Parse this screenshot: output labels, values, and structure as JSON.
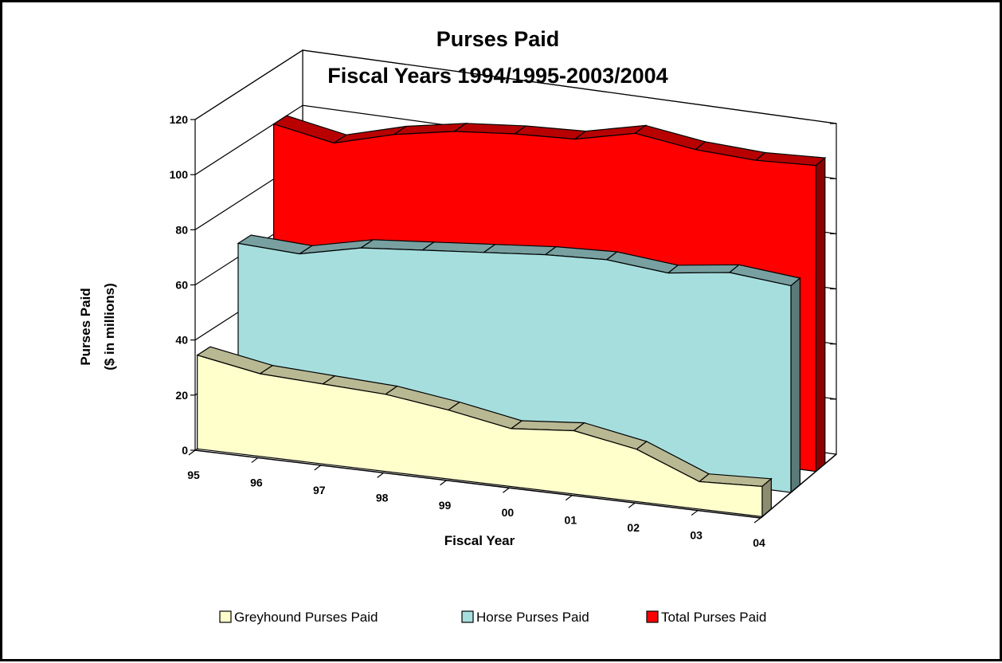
{
  "chart_data": {
    "type": "area",
    "subtype": "3d-area",
    "title": "Purses Paid",
    "subtitle": "Fiscal Years 1994/1995-2003/2004",
    "xlabel": "Fiscal Year",
    "ylabel_line1": "Purses Paid",
    "ylabel_line2": "($ in millions)",
    "categories": [
      "95",
      "96",
      "97",
      "98",
      "99",
      "00",
      "01",
      "02",
      "03",
      "04"
    ],
    "y_ticks": [
      "0",
      "20",
      "40",
      "60",
      "80",
      "100",
      "120"
    ],
    "ylim": [
      0,
      120
    ],
    "grid": true,
    "legend_position": "bottom",
    "series": [
      {
        "name": "Greyhound Purses Paid",
        "color": "#FFFFCC",
        "values": [
          34,
          30,
          29,
          28,
          25,
          21,
          23,
          19,
          10,
          11
        ]
      },
      {
        "name": "Horse Purses Paid",
        "color": "#A6DEDE",
        "values": [
          65,
          64,
          69,
          71,
          73,
          75,
          76,
          74,
          77,
          75
        ]
      },
      {
        "name": "Total Purses Paid",
        "color": "#FF0000",
        "values": [
          100,
          96,
          102,
          106,
          108,
          109,
          114,
          111,
          110,
          111
        ]
      }
    ]
  }
}
